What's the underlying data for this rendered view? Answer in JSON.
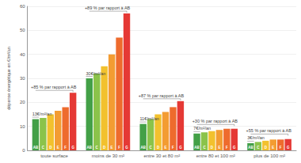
{
  "chart_data": {
    "type": "bar",
    "y_label": "dépense énergétique en €/m²/an",
    "categories": [
      "toute surface",
      "moins de 30 m²",
      "entre 30 et 80 m²",
      "entre 80 et 100 m²",
      "plus de 100 m²"
    ],
    "series": [
      {
        "name": "AB",
        "color": "#43a047",
        "values": [
          13,
          30,
          11,
          7,
          3
        ]
      },
      {
        "name": "C",
        "color": "#8bc34a",
        "values": [
          13.5,
          32,
          13,
          7.5,
          3.5
        ]
      },
      {
        "name": "D",
        "color": "#f2c12e",
        "values": [
          15,
          35,
          15,
          8,
          4
        ]
      },
      {
        "name": "E",
        "color": "#f39c32",
        "values": [
          16.5,
          40,
          16,
          8.5,
          4.5
        ]
      },
      {
        "name": "F",
        "color": "#ee6b2d",
        "values": [
          18,
          47,
          18,
          9,
          4.5
        ]
      },
      {
        "name": "G",
        "color": "#e53935",
        "values": [
          24,
          57,
          20.5,
          9,
          4.7
        ]
      }
    ],
    "annotations": [
      {
        "category": "toute surface",
        "base_label": "13€/m²/an",
        "change_label": "+85 % par rapport à AB"
      },
      {
        "category": "moins de 30 m²",
        "base_label": "30€/m²/an",
        "change_label": "+89 % par rapport à AB"
      },
      {
        "category": "entre 30 et 80 m²",
        "base_label": "11€/m²/an",
        "change_label": "+87 % par rapport à AB"
      },
      {
        "category": "entre 80 et 100 m²",
        "base_label": "7€/m²/an",
        "change_label": "+30 % par rapport à AB"
      },
      {
        "category": "plus de 100 m²",
        "base_label": "3€/m²/an",
        "change_label": "+55 % par rapport à AB"
      }
    ],
    "ylim": [
      0,
      60
    ],
    "yticks": [
      0,
      10,
      20,
      30,
      40,
      50,
      60
    ],
    "grid": true
  }
}
